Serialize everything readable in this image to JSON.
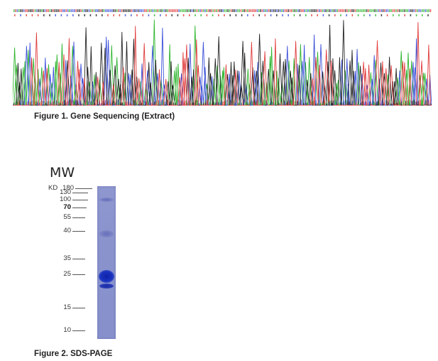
{
  "figure1": {
    "caption": "Figure 1. Gene Sequencing (Extract)"
  },
  "figure2": {
    "caption": "Figure 2. SDS-PAGE",
    "mw_title": "MW",
    "unit_label": "KD",
    "markers": [
      {
        "label": "180",
        "bold": false
      },
      {
        "label": "130",
        "bold": false
      },
      {
        "label": "100",
        "bold": false
      },
      {
        "label": "70",
        "bold": true
      },
      {
        "label": "55",
        "bold": false
      },
      {
        "label": "40",
        "bold": false
      },
      {
        "label": "35",
        "bold": false
      },
      {
        "label": "25",
        "bold": false
      },
      {
        "label": "15",
        "bold": false
      },
      {
        "label": "10",
        "bold": false
      }
    ]
  },
  "colors": {
    "trace_a": "#2db52d",
    "trace_c": "#3a4fd8",
    "trace_g": "#222222",
    "trace_t": "#e03a3a",
    "gel_lane": "#8a93cc",
    "gel_band": "#1a2fb0"
  }
}
